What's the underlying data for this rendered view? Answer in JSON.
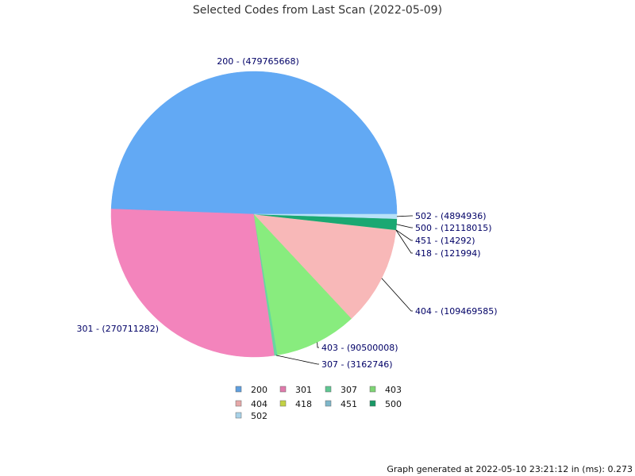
{
  "chart_data": {
    "type": "pie",
    "title": "Selected Codes from Last Scan (2022-05-09)",
    "slices": [
      {
        "name": "200",
        "value": 479765668,
        "label": "200 - (479765668)",
        "color": "#62a9f4",
        "legend_color": "#5f9fdf"
      },
      {
        "name": "301",
        "value": 270711282,
        "label": "301 - (270711282)",
        "color": "#f384bc",
        "legend_color": "#e07aac"
      },
      {
        "name": "307",
        "value": 3162746,
        "label": "307 - (3162746)",
        "color": "#66d8a0",
        "legend_color": "#5fc792"
      },
      {
        "name": "403",
        "value": 90500008,
        "label": "403 - (90500008)",
        "color": "#88ec7e",
        "legend_color": "#7ed574"
      },
      {
        "name": "404",
        "value": 109469585,
        "label": "404 - (109469585)",
        "color": "#f8b8b8",
        "legend_color": "#e6a8a8"
      },
      {
        "name": "418",
        "value": 121994,
        "label": "418 - (121994)",
        "color": "#d4e34c",
        "legend_color": "#c3d244"
      },
      {
        "name": "451",
        "value": 14292,
        "label": "451 - (14292)",
        "color": "#8cc8dc",
        "legend_color": "#7fb7ca"
      },
      {
        "name": "500",
        "value": 12118015,
        "label": "500 - (12118015)",
        "color": "#1aa872",
        "legend_color": "#189866"
      },
      {
        "name": "502",
        "value": 4894936,
        "label": "502 - (4894936)",
        "color": "#b8e2f8",
        "legend_color": "#a8d2e8"
      }
    ]
  },
  "footer": {
    "text": "Graph generated at 2022-05-10 23:21:12 in (ms): 0.273"
  }
}
